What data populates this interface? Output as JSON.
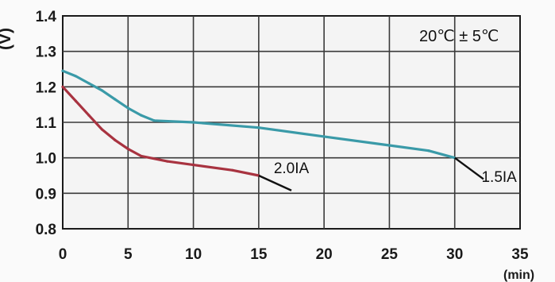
{
  "chart_data": {
    "type": "line",
    "title": "",
    "annotation": "20℃ ± 5℃",
    "xlabel": "(min)",
    "ylabel": "(V)",
    "xlim": [
      0,
      35
    ],
    "ylim": [
      0.8,
      1.4
    ],
    "x_ticks": [
      "0",
      "5",
      "10",
      "15",
      "20",
      "25",
      "30",
      "35"
    ],
    "y_ticks": [
      "0.8",
      "0.9",
      "1.0",
      "1.1",
      "1.2",
      "1.3",
      "1.4"
    ],
    "grid": true,
    "series": [
      {
        "name": "1.5IA",
        "color": "#3a9aa8",
        "x": [
          0,
          1,
          2,
          3,
          4,
          5,
          6,
          7,
          10,
          15,
          20,
          25,
          28,
          30
        ],
        "y": [
          1.245,
          1.23,
          1.21,
          1.19,
          1.165,
          1.14,
          1.12,
          1.105,
          1.1,
          1.085,
          1.06,
          1.035,
          1.02,
          1.0
        ]
      },
      {
        "name": "2.0IA",
        "color": "#a83340",
        "x": [
          0,
          1,
          2,
          3,
          4,
          5,
          6,
          8,
          10,
          13,
          15
        ],
        "y": [
          1.2,
          1.16,
          1.12,
          1.08,
          1.05,
          1.025,
          1.005,
          0.99,
          0.98,
          0.965,
          0.95
        ]
      }
    ],
    "labels": [
      {
        "text": "2.0IA",
        "x": 17.5,
        "y": 0.975
      },
      {
        "text": "1.5IA",
        "x": 33.4,
        "y": 0.95
      }
    ]
  }
}
